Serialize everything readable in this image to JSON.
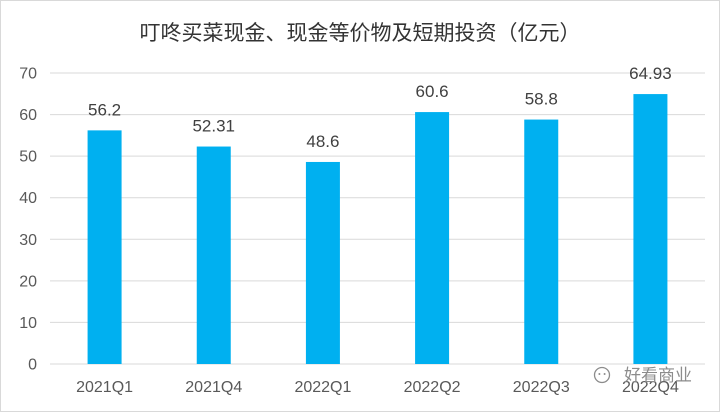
{
  "chart_data": {
    "type": "bar",
    "title": "叮咚买菜现金、现金等价物及短期投资（亿元）",
    "categories": [
      "2021Q1",
      "2021Q4",
      "2022Q1",
      "2022Q2",
      "2022Q3",
      "2022Q4"
    ],
    "values": [
      56.2,
      52.31,
      48.6,
      60.6,
      58.8,
      64.93
    ],
    "data_labels": [
      "56.2",
      "52.31",
      "48.6",
      "60.6",
      "58.8",
      "64.93"
    ],
    "ylim": [
      0,
      70
    ],
    "yticks": [
      "0",
      "10",
      "20",
      "30",
      "40",
      "50",
      "60",
      "70"
    ],
    "grid": true,
    "bar_color": "#00b0f0",
    "gridline_color": "#d9d9d9"
  },
  "watermark": {
    "text": "好看商业",
    "icon": "wechat-icon"
  }
}
